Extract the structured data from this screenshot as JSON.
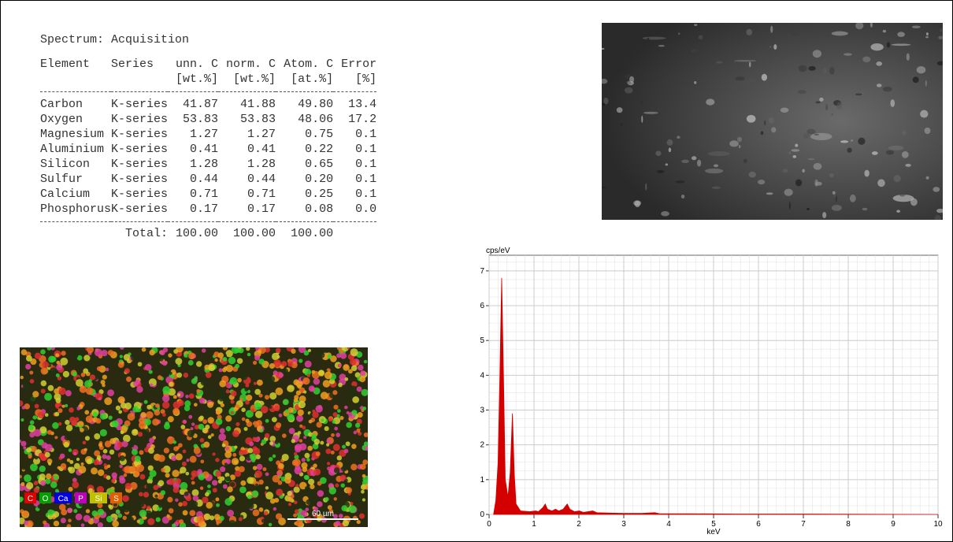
{
  "table": {
    "title": "Spectrum: Acquisition",
    "header": [
      "Element",
      "Series",
      "unn. C",
      "norm. C",
      "Atom. C",
      "Error"
    ],
    "units": [
      "[wt.%]",
      "[wt.%]",
      "[at.%]",
      "[%]"
    ],
    "rows": [
      [
        "Carbon",
        "K-series",
        "41.87",
        "41.88",
        "49.80",
        "13.4"
      ],
      [
        "Oxygen",
        "K-series",
        "53.83",
        "53.83",
        "48.06",
        "17.2"
      ],
      [
        "Magnesium",
        "K-series",
        "1.27",
        "1.27",
        "0.75",
        "0.1"
      ],
      [
        "Aluminium",
        "K-series",
        "0.41",
        "0.41",
        "0.22",
        "0.1"
      ],
      [
        "Silicon",
        "K-series",
        "1.28",
        "1.28",
        "0.65",
        "0.1"
      ],
      [
        "Sulfur",
        "K-series",
        "0.44",
        "0.44",
        "0.20",
        "0.1"
      ],
      [
        "Calcium",
        "K-series",
        "0.71",
        "0.71",
        "0.25",
        "0.1"
      ],
      [
        "Phosphorus",
        "K-series",
        "0.17",
        "0.17",
        "0.08",
        "0.0"
      ]
    ],
    "total": [
      "Total:",
      "100.00",
      "100.00",
      "100.00"
    ]
  },
  "map": {
    "legend": [
      "C",
      "O",
      "Ca",
      "P",
      "Si",
      "S"
    ],
    "scale_bar": "60 µm"
  },
  "chart_data": {
    "type": "area",
    "ylabel": "cps/eV",
    "xlabel": "keV",
    "color": "#d40000",
    "x": [
      0.1,
      0.15,
      0.2,
      0.24,
      0.28,
      0.32,
      0.36,
      0.42,
      0.47,
      0.52,
      0.56,
      0.6,
      0.7,
      0.9,
      1.04,
      1.1,
      1.2,
      1.25,
      1.3,
      1.4,
      1.48,
      1.55,
      1.65,
      1.74,
      1.8,
      1.9,
      2.01,
      2.1,
      2.31,
      2.4,
      2.7,
      3.0,
      3.4,
      3.69,
      3.8,
      4.5,
      5.5,
      7,
      10
    ],
    "values": [
      0,
      0.4,
      1.5,
      4.0,
      6.8,
      4.0,
      1.0,
      0.5,
      1.2,
      2.9,
      1.2,
      0.3,
      0.1,
      0.08,
      0.1,
      0.08,
      0.2,
      0.3,
      0.15,
      0.1,
      0.15,
      0.1,
      0.15,
      0.3,
      0.15,
      0.08,
      0.1,
      0.06,
      0.1,
      0.05,
      0.04,
      0.03,
      0.03,
      0.05,
      0.02,
      0.02,
      0.01,
      0.01,
      0
    ],
    "xlim": [
      0,
      10
    ],
    "ylim": [
      0,
      7.45
    ],
    "xticks": [
      0,
      1,
      2,
      3,
      4,
      5,
      6,
      7,
      8,
      9,
      10
    ],
    "yticks": [
      0,
      1,
      2,
      3,
      4,
      5,
      6,
      7
    ],
    "grid": true
  }
}
